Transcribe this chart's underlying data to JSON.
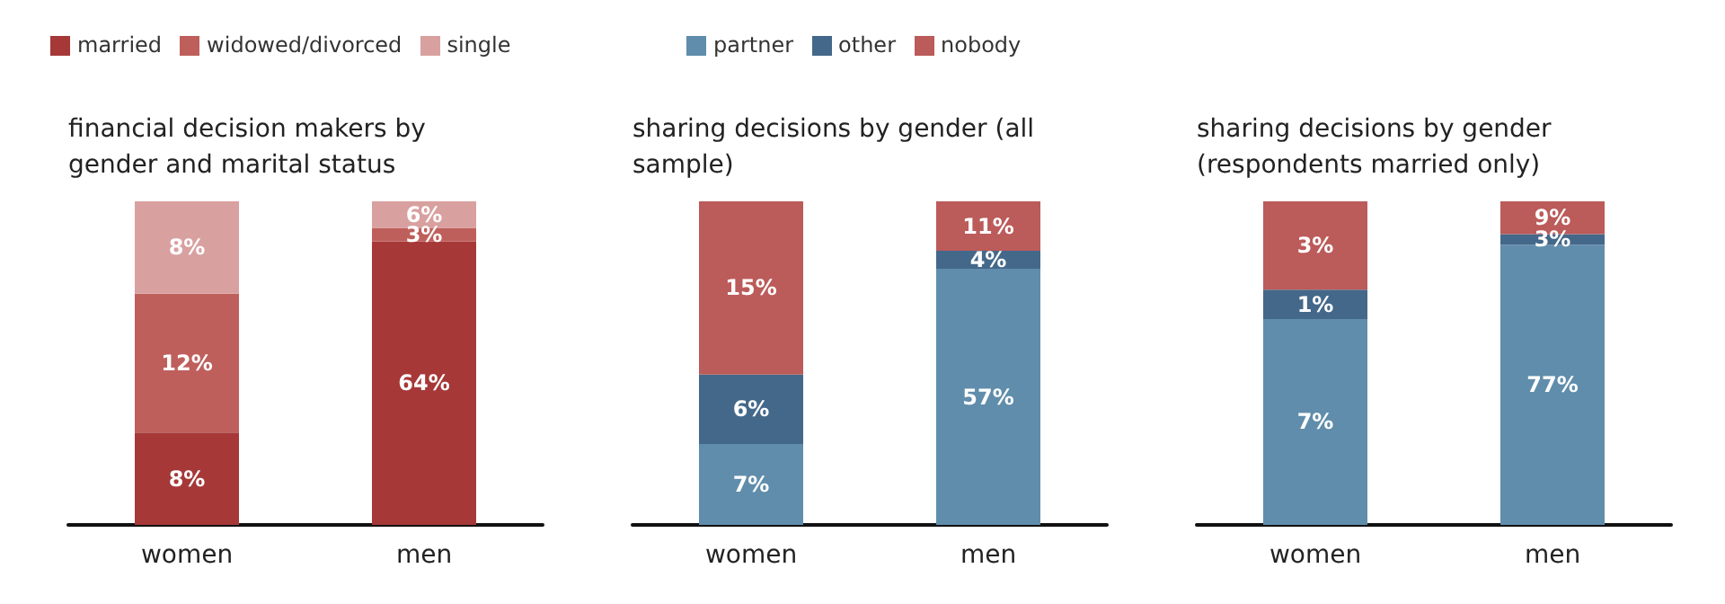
{
  "chart_data": [
    {
      "type": "bar",
      "title": "financial decision makers by gender and marital status",
      "categories": [
        "women"
      ],
      "stacked": true,
      "legend": "top right",
      "series": [
        {
          "name": "married",
          "color": "#a63838",
          "values": [
            8
          ],
          "value_labels": [
            "8%"
          ]
        },
        {
          "name": "widowed/divorced",
          "color": "#bf5f5c",
          "values": [
            12
          ],
          "value_labels": [
            "12%"
          ]
        },
        {
          "name": "single",
          "color": "#d9a0a0",
          "values": [
            8
          ],
          "value_labels": [
            "8%"
          ]
        }
      ]
    },
    {
      "type": "bar",
      "categories": [
        "men"
      ],
      "stacked": true,
      "series": [
        {
          "color": "#a63838",
          "values": [
            64
          ],
          "value_labels": [
            "64%"
          ]
        },
        {
          "color": "#bf5f5c",
          "values": [
            3
          ],
          "value_labels": [
            "3%"
          ]
        },
        {
          "color": "#d9a0a0",
          "values": [
            6
          ],
          "value_labels": [
            "6%"
          ]
        }
      ]
    },
    {
      "type": "bar",
      "title": "sharing decisions by gender (all sample)",
      "categories": [
        "women"
      ],
      "stacked": true,
      "legend": "top",
      "series": [
        {
          "name": "partner",
          "color": "#608dab",
          "values": [
            7
          ],
          "value_labels": [
            "7%"
          ]
        },
        {
          "name": "other",
          "color": "#44688a",
          "values": [
            6
          ],
          "value_labels": [
            "6%"
          ]
        },
        {
          "name": "nobody",
          "color": "#bb5b5a",
          "values": [
            15
          ],
          "value_labels": [
            "15%"
          ]
        }
      ]
    },
    {
      "type": "bar",
      "categories": [
        "men"
      ],
      "stacked": true,
      "series": [
        {
          "color": "#608dab",
          "values": [
            57
          ],
          "value_labels": [
            "57%"
          ]
        },
        {
          "color": "#44688a",
          "values": [
            4
          ],
          "value_labels": [
            "4%"
          ]
        },
        {
          "color": "#bb5b5a",
          "values": [
            11
          ],
          "value_labels": [
            "11%"
          ]
        }
      ]
    },
    {
      "type": "bar",
      "title": "sharing decisions by gender (respondents married only)",
      "categories": [
        "women"
      ],
      "stacked": true,
      "series": [
        {
          "color": "#608dab",
          "values": [
            7
          ],
          "value_labels": [
            "7%"
          ]
        },
        {
          "color": "#44688a",
          "values": [
            1
          ],
          "value_labels": [
            "1%"
          ]
        },
        {
          "color": "#bb5b5a",
          "values": [
            3
          ],
          "value_labels": [
            "3%"
          ]
        }
      ]
    },
    {
      "type": "bar",
      "categories": [
        "men"
      ],
      "stacked": true,
      "series": [
        {
          "color": "#608dab",
          "values": [
            77
          ],
          "value_labels": [
            "77%"
          ]
        },
        {
          "color": "#44688a",
          "values": [
            3
          ],
          "value_labels": [
            "3%"
          ]
        },
        {
          "color": "#bb5b5a",
          "values": [
            9
          ],
          "value_labels": [
            "9%"
          ]
        }
      ]
    }
  ]
}
